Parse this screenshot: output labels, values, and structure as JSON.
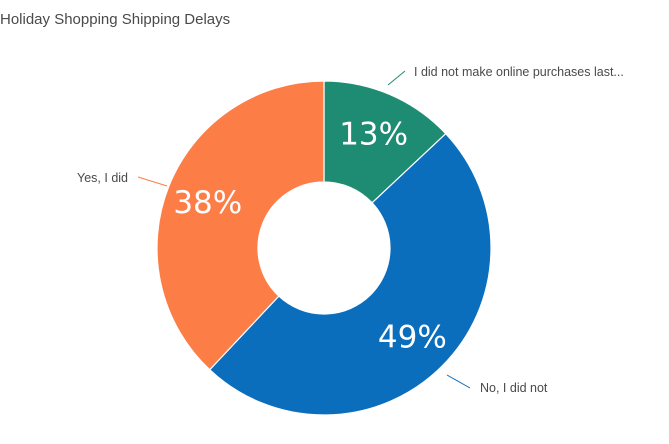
{
  "chart_data": {
    "type": "pie",
    "variant": "donut",
    "title": "Holiday Shopping Shipping Delays",
    "slices": [
      {
        "label": "I did not make online purchases last...",
        "value": 13,
        "display": "13%",
        "color": "#1e8c73"
      },
      {
        "label": "No, I did not",
        "value": 49,
        "display": "49%",
        "color": "#0b6ebd"
      },
      {
        "label": "Yes, I did",
        "value": 38,
        "display": "38%",
        "color": "#fd7d47"
      }
    ],
    "legend": "none",
    "start_angle": "top",
    "direction": "clockwise",
    "label_style": "outside-callouts"
  }
}
